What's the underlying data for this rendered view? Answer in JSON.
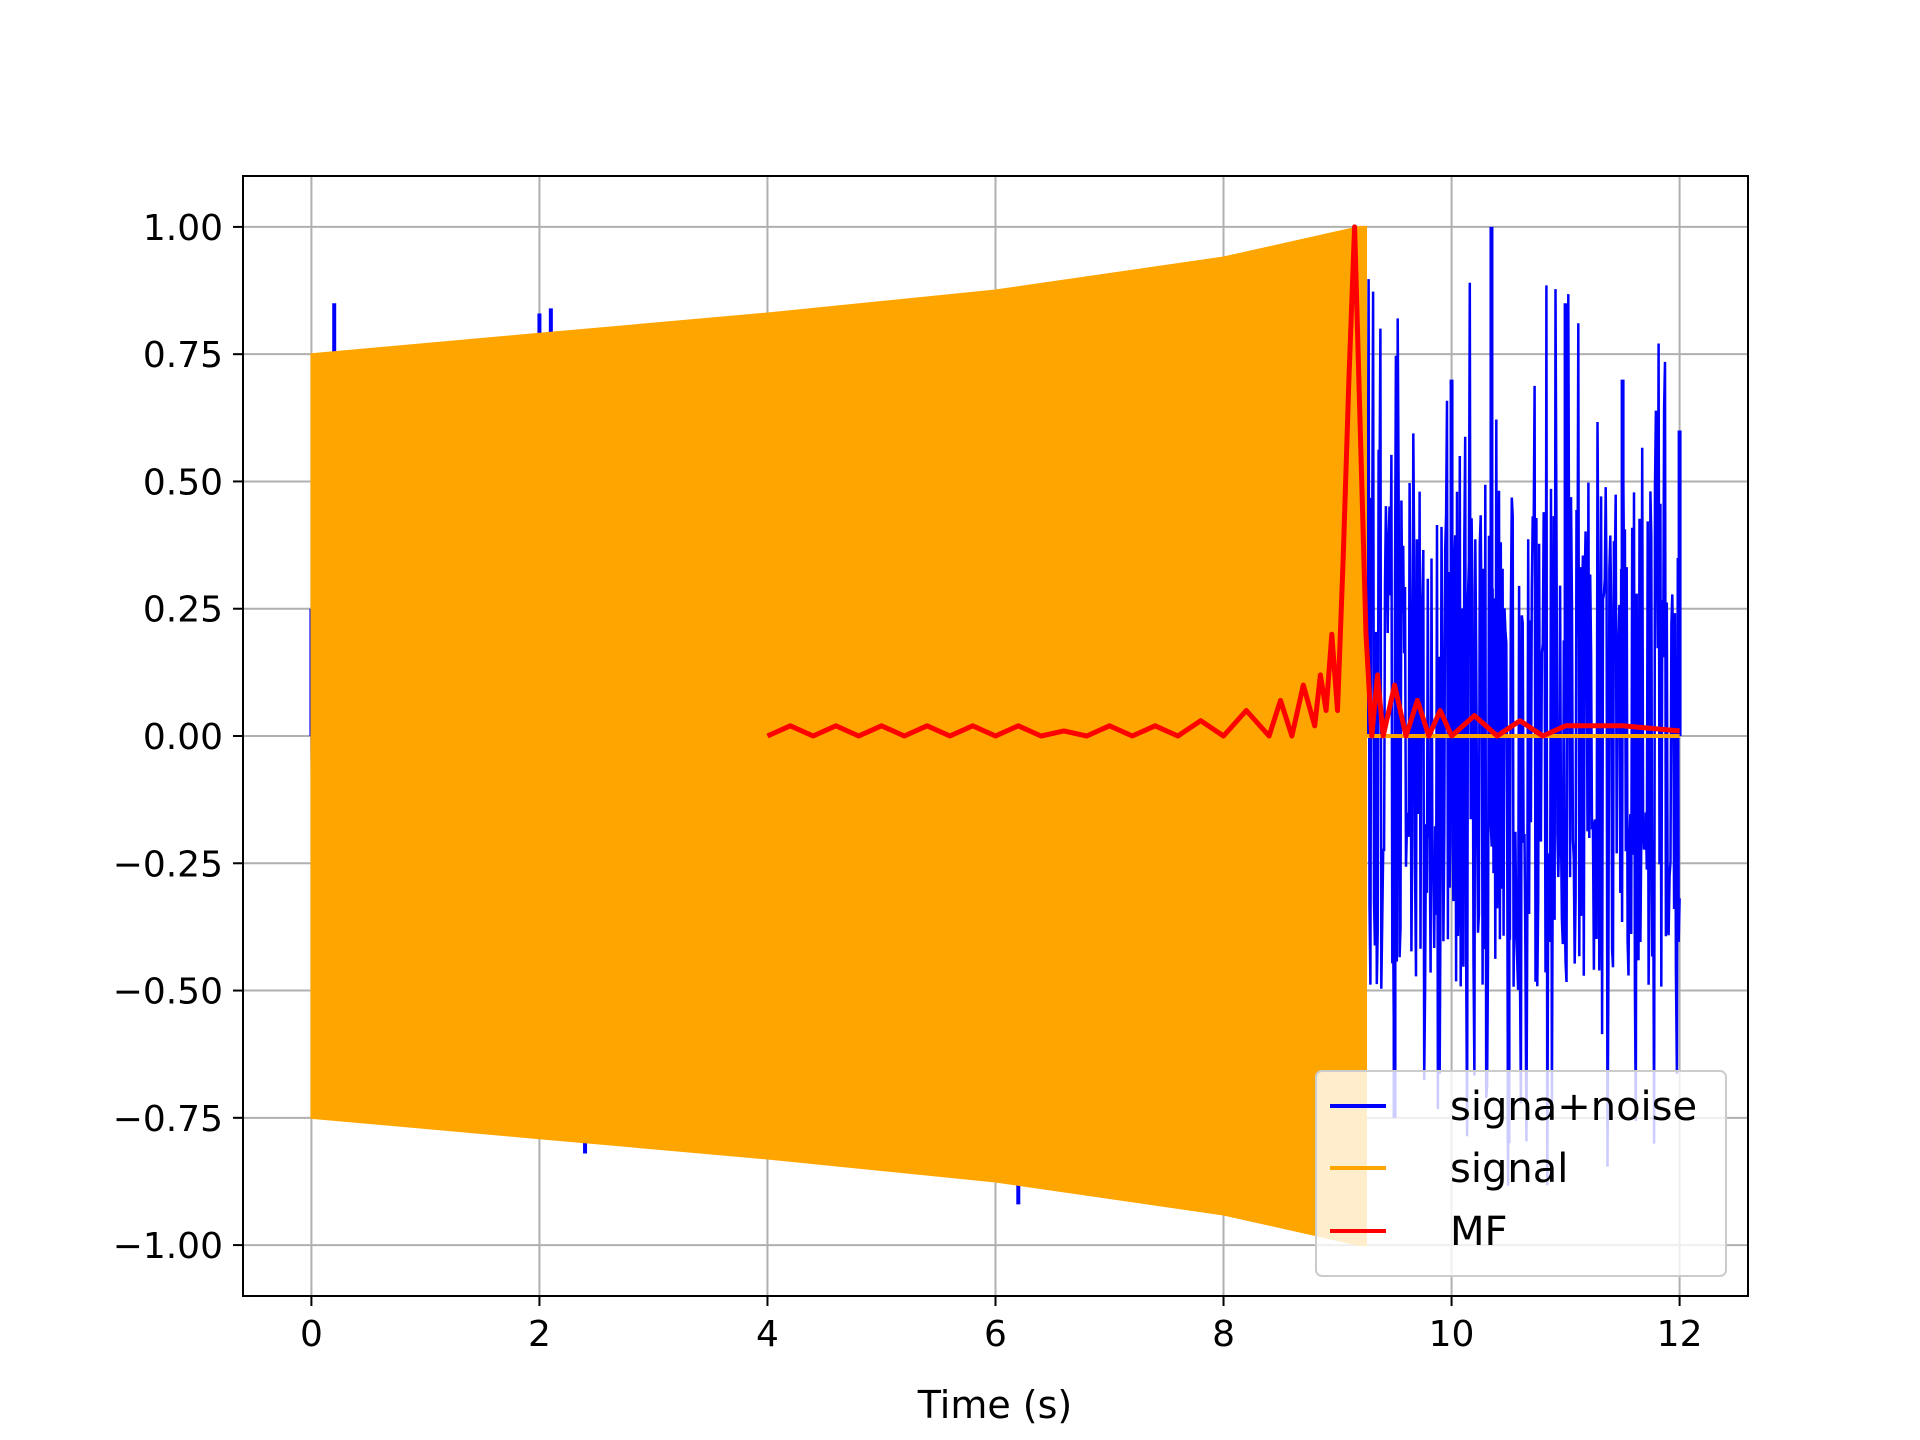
{
  "chart_data": {
    "type": "line",
    "title": "",
    "xlabel": "Time (s)",
    "ylabel": "",
    "xlim": [
      -0.6,
      12.6
    ],
    "ylim": [
      -1.1,
      1.1
    ],
    "xticks": [
      0,
      2,
      4,
      6,
      8,
      10,
      12
    ],
    "xtick_labels": [
      "0",
      "2",
      "4",
      "6",
      "8",
      "10",
      "12"
    ],
    "yticks": [
      1.0,
      0.75,
      0.5,
      0.25,
      0.0,
      -0.25,
      -0.5,
      -0.75,
      -1.0
    ],
    "ytick_labels": [
      "1.00",
      "0.75",
      "0.50",
      "0.25",
      "0.00",
      "−0.25",
      "−0.50",
      "−0.75",
      "−1.00"
    ],
    "grid": true,
    "legend_position": "lower-right",
    "series": [
      {
        "name": "signa+noise",
        "color": "#0000ff",
        "description_points": {
          "x": [
            0.0,
            0.2,
            2.0,
            2.1,
            2.4,
            6.2,
            9.25,
            9.5,
            10.0,
            10.35,
            10.5,
            11.0,
            11.5,
            12.0
          ],
          "y": [
            0.25,
            0.85,
            0.83,
            0.84,
            -0.82,
            -0.92,
            0.6,
            -0.75,
            0.7,
            1.0,
            -0.8,
            0.85,
            0.7,
            0.6
          ]
        }
      },
      {
        "name": "signal",
        "color": "#ffa500",
        "envelope": {
          "x": [
            0.0,
            2.0,
            4.0,
            6.0,
            8.0,
            9.0,
            9.2
          ],
          "upper": [
            0.75,
            0.79,
            0.83,
            0.875,
            0.94,
            0.99,
            1.0
          ],
          "lower": [
            -0.75,
            -0.79,
            -0.83,
            -0.875,
            -0.94,
            -0.99,
            -1.0
          ]
        },
        "end_time": 9.25
      },
      {
        "name": "MF",
        "color": "#ff0000",
        "x": [
          4.0,
          4.2,
          4.4,
          4.6,
          4.8,
          5.0,
          5.2,
          5.4,
          5.6,
          5.8,
          6.0,
          6.2,
          6.4,
          6.6,
          6.8,
          7.0,
          7.2,
          7.4,
          7.6,
          7.8,
          8.0,
          8.2,
          8.4,
          8.5,
          8.6,
          8.7,
          8.8,
          8.85,
          8.9,
          8.95,
          9.0,
          9.05,
          9.1,
          9.15,
          9.2,
          9.25,
          9.3,
          9.35,
          9.4,
          9.5,
          9.6,
          9.7,
          9.8,
          9.9,
          10.0,
          10.2,
          10.4,
          10.6,
          10.8,
          11.0,
          11.5,
          12.0
        ],
        "y": [
          0.0,
          0.02,
          0.0,
          0.02,
          0.0,
          0.02,
          0.0,
          0.02,
          0.0,
          0.02,
          0.0,
          0.02,
          0.0,
          0.01,
          0.0,
          0.02,
          0.0,
          0.02,
          0.0,
          0.03,
          0.0,
          0.05,
          0.0,
          0.07,
          0.0,
          0.1,
          0.02,
          0.12,
          0.05,
          0.2,
          0.05,
          0.35,
          0.7,
          1.0,
          0.6,
          0.2,
          0.0,
          0.12,
          0.0,
          0.1,
          0.0,
          0.07,
          0.0,
          0.05,
          0.0,
          0.04,
          0.0,
          0.03,
          0.0,
          0.02,
          0.02,
          0.01
        ]
      }
    ]
  }
}
